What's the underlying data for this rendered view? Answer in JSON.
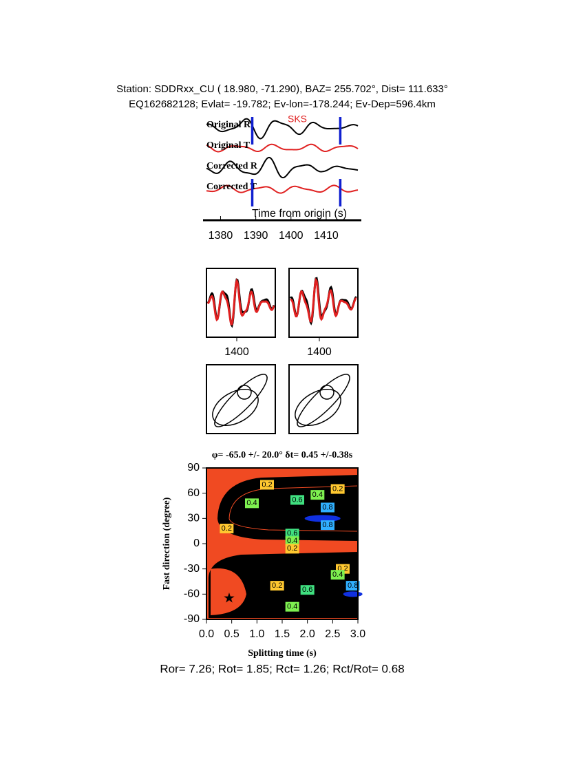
{
  "header": {
    "line1": "Station: SDDRxx_CU (  18.980,  -71.290), BAZ=  255.702°, Dist=  111.633°",
    "line2": "EQ162682128; Evlat= -19.782; Ev-lon=-178.244; Ev-Dep=596.4km"
  },
  "chart_data": [
    {
      "type": "waveform",
      "phase_label": "SKS",
      "trace_labels": [
        "Original R",
        "Original T",
        "Corrected R",
        "Corrected T"
      ],
      "x_label": "Time from origin (s)",
      "xlim": [
        1376,
        1419
      ],
      "xticks": [
        1380,
        1390,
        1400,
        1410
      ],
      "window": [
        1389,
        1414
      ]
    },
    {
      "type": "overlay",
      "xlim": [
        1389,
        1414
      ],
      "xticks": [
        1400
      ]
    },
    {
      "type": "overlay",
      "xlim": [
        1389,
        1414
      ],
      "xticks": [
        1400
      ]
    },
    {
      "type": "contour",
      "title": "φ= -65.0 +/- 20.0° δt= 0.45 +/-0.38s",
      "x_label": "Splitting time (s)",
      "y_label": "Fast direction (degree)",
      "xlim": [
        0,
        3
      ],
      "ylim": [
        -90,
        90
      ],
      "xticks": [
        {
          "value": 0,
          "label": "0.0"
        },
        0.5,
        {
          "value": 1,
          "label": "1.0"
        },
        1.5,
        {
          "value": 2,
          "label": "2.0"
        },
        2.5,
        {
          "value": 3,
          "label": "3.0"
        }
      ],
      "yticks": [
        -90,
        -60,
        -30,
        0,
        30,
        60,
        90
      ],
      "best": {
        "x": 0.45,
        "y": -65
      },
      "contour_labels": [
        "0.2",
        "0.6",
        "0.4",
        "0.2",
        "0.4",
        "0.8",
        "0.8",
        "0.2",
        "0.6",
        "0.4",
        "0.2",
        "0.2",
        "0.4",
        "0.8",
        "0.2",
        "0.6",
        "0.4"
      ]
    }
  ],
  "footer": "Ror= 7.26; Rot= 1.85; Rct= 1.26; Rct/Rot= 0.68"
}
